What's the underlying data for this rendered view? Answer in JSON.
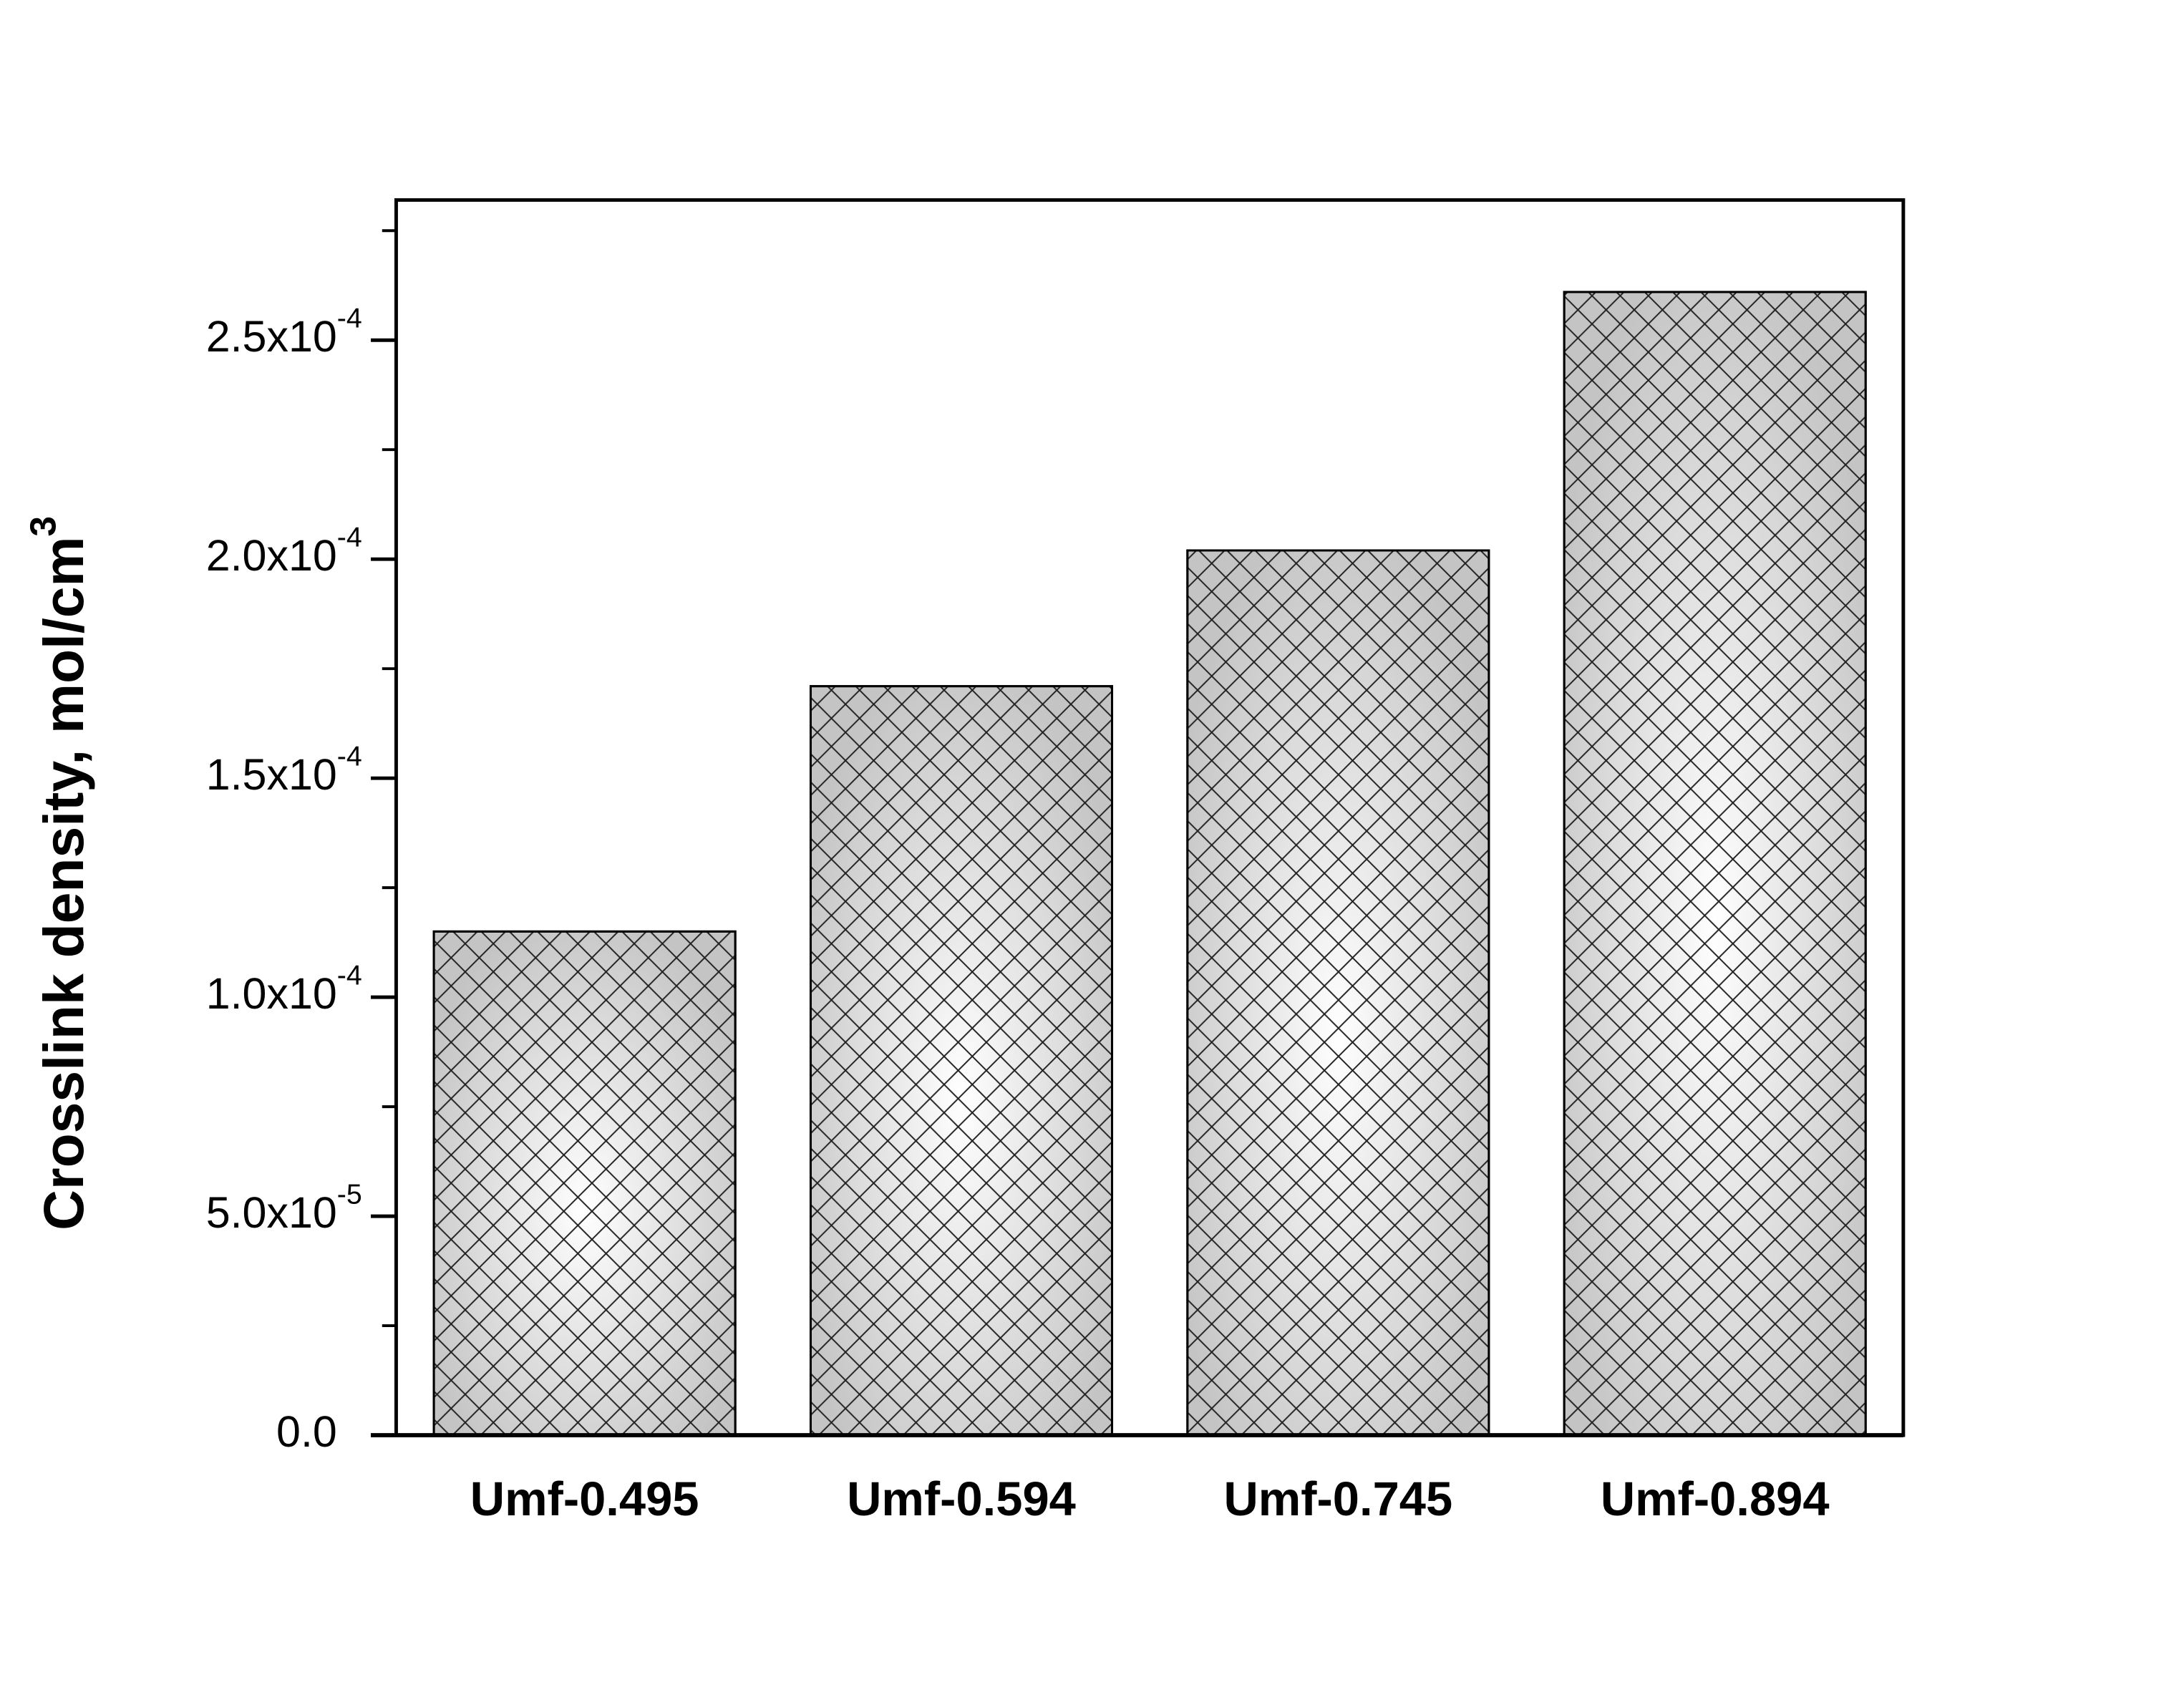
{
  "chart_data": {
    "type": "bar",
    "y_label": "Crosslink density, mol/cm",
    "y_label_sup": "3",
    "categories": [
      "Umf-0.495",
      "Umf-0.594",
      "Umf-0.745",
      "Umf-0.894"
    ],
    "values": [
      0.000115,
      0.000171,
      0.000202,
      0.000261
    ],
    "color": "#c4c4c4",
    "ylim": [
      0,
      0.000282
    ],
    "yticks": [
      {
        "value": 0,
        "label": "0.0",
        "exponent": ""
      },
      {
        "value": 5e-05,
        "label": "5.0x10",
        "exponent": "-5"
      },
      {
        "value": 0.0001,
        "label": "1.0x10",
        "exponent": "-4"
      },
      {
        "value": 0.00015,
        "label": "1.5x10",
        "exponent": "-4"
      },
      {
        "value": 0.0002,
        "label": "2.0x10",
        "exponent": "-4"
      },
      {
        "value": 0.00025,
        "label": "2.5x10",
        "exponent": "-4"
      }
    ],
    "y_minor_ticks": [
      2.5e-05,
      7.5e-05,
      0.000125,
      0.000175,
      0.000225,
      0.000275
    ],
    "grid": false
  }
}
